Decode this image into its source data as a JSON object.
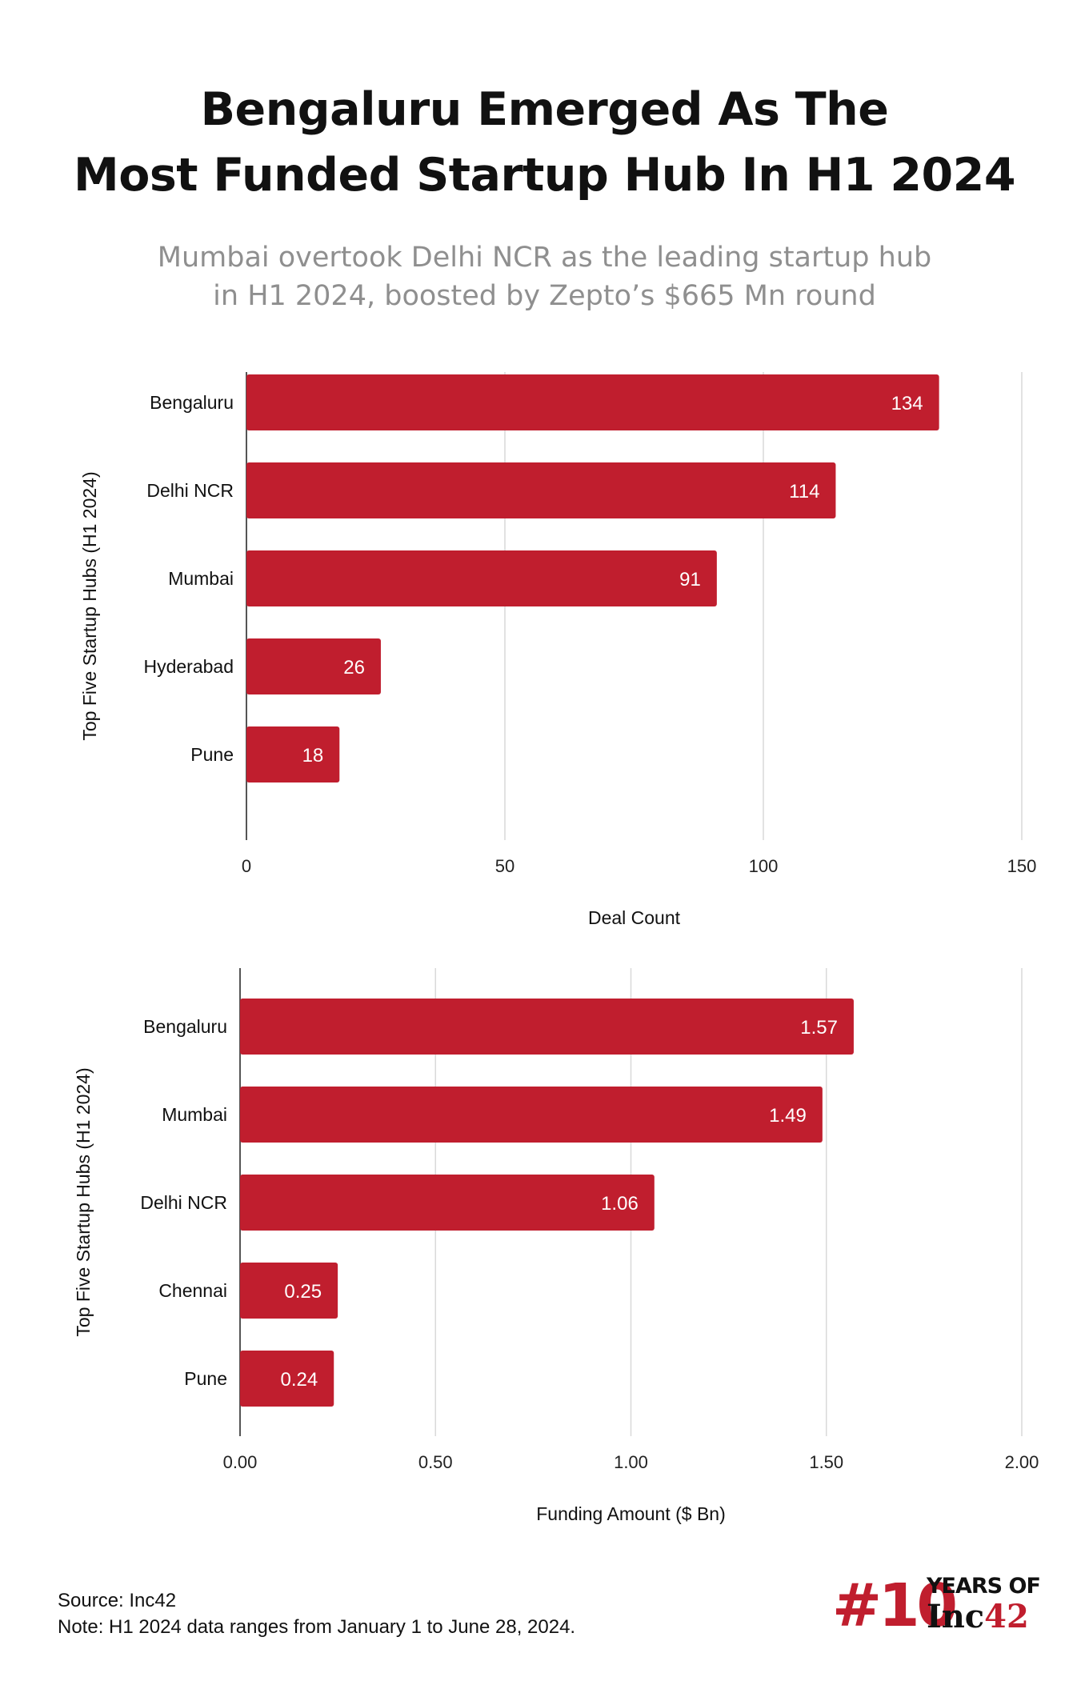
{
  "header": {
    "title_line1": "Bengaluru Emerged As The",
    "title_line2": "Most Funded Startup Hub In H1 2024",
    "subtitle_line1": "Mumbai overtook Delhi NCR as the leading startup hub",
    "subtitle_line2": "in H1 2024, boosted by Zepto’s $665 Mn round"
  },
  "colors": {
    "bar": "#c01e2e",
    "grid": "#d9d9d9",
    "axis": "#555555",
    "subtitle": "#8f8f8f"
  },
  "chart_data": [
    {
      "type": "bar",
      "orientation": "horizontal",
      "categories": [
        "Bengaluru",
        "Delhi NCR",
        "Mumbai",
        "Hyderabad",
        "Pune"
      ],
      "values": [
        134,
        114,
        91,
        26,
        18
      ],
      "value_labels": [
        "134",
        "114",
        "91",
        "26",
        "18"
      ],
      "xlabel": "Deal Count",
      "ylabel": "Top Five Startup Hubs (H1 2024)",
      "xlim": [
        0,
        150
      ],
      "ticks": [
        0,
        50,
        100,
        150
      ],
      "tick_labels": [
        "0",
        "50",
        "100",
        "150"
      ],
      "grid": true
    },
    {
      "type": "bar",
      "orientation": "horizontal",
      "categories": [
        "Bengaluru",
        "Mumbai",
        "Delhi NCR",
        "Chennai",
        "Pune"
      ],
      "values": [
        1.57,
        1.49,
        1.06,
        0.25,
        0.24
      ],
      "value_labels": [
        "1.57",
        "1.49",
        "1.06",
        "0.25",
        "0.24"
      ],
      "xlabel": "Funding Amount ($ Bn)",
      "ylabel": "Top Five Startup Hubs (H1 2024)",
      "xlim": [
        0,
        2
      ],
      "ticks": [
        0,
        0.5,
        1,
        1.5,
        2
      ],
      "tick_labels": [
        "0.00",
        "0.50",
        "1.00",
        "1.50",
        "2.00"
      ],
      "grid": true
    }
  ],
  "footer": {
    "source": "Source: Inc42",
    "note": "Note: H1 2024 data ranges from January 1 to June 28, 2024."
  },
  "logo": {
    "hash": "#10",
    "years": "YEARS OF",
    "inc": "Inc",
    "inc_num": "42"
  }
}
